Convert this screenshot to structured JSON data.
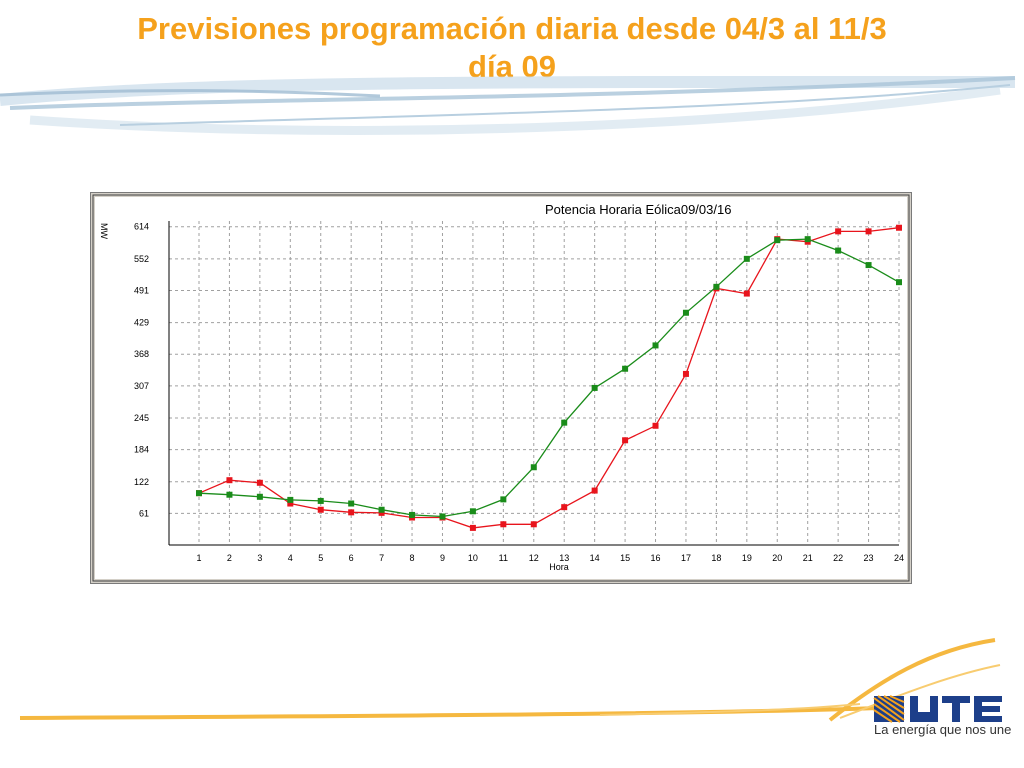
{
  "slide": {
    "title_line1": "Previsiones programación diaria desde 04/3 al 11/3",
    "title_line2": "día 09",
    "title_color": "#f5a11c"
  },
  "logo": {
    "wordmark": "UTE",
    "tagline": "La energía que nos une"
  },
  "chart_data": {
    "type": "line",
    "title": "Potencia Horaria Eólica09/03/16",
    "xlabel": "Hora",
    "ylabel": "MW",
    "categories": [
      "1",
      "2",
      "3",
      "4",
      "5",
      "6",
      "7",
      "8",
      "9",
      "10",
      "11",
      "12",
      "13",
      "14",
      "15",
      "16",
      "17",
      "18",
      "19",
      "20",
      "21",
      "22",
      "23",
      "24"
    ],
    "yticks": [
      "61",
      "122",
      "184",
      "245",
      "307",
      "368",
      "429",
      "491",
      "552",
      "614"
    ],
    "ylim": [
      0,
      625
    ],
    "grid": true,
    "legend": "none",
    "series": [
      {
        "color": "#e8141c",
        "values": [
          100,
          125,
          120,
          80,
          68,
          63,
          62,
          53,
          53,
          33,
          40,
          40,
          73,
          105,
          202,
          230,
          330,
          495,
          485,
          590,
          585,
          605,
          605,
          612
        ]
      },
      {
        "color": "#1a8c1a",
        "values": [
          100,
          97,
          93,
          87,
          85,
          80,
          68,
          58,
          55,
          65,
          88,
          150,
          236,
          303,
          340,
          385,
          448,
          498,
          552,
          588,
          590,
          568,
          540,
          507
        ]
      }
    ]
  }
}
